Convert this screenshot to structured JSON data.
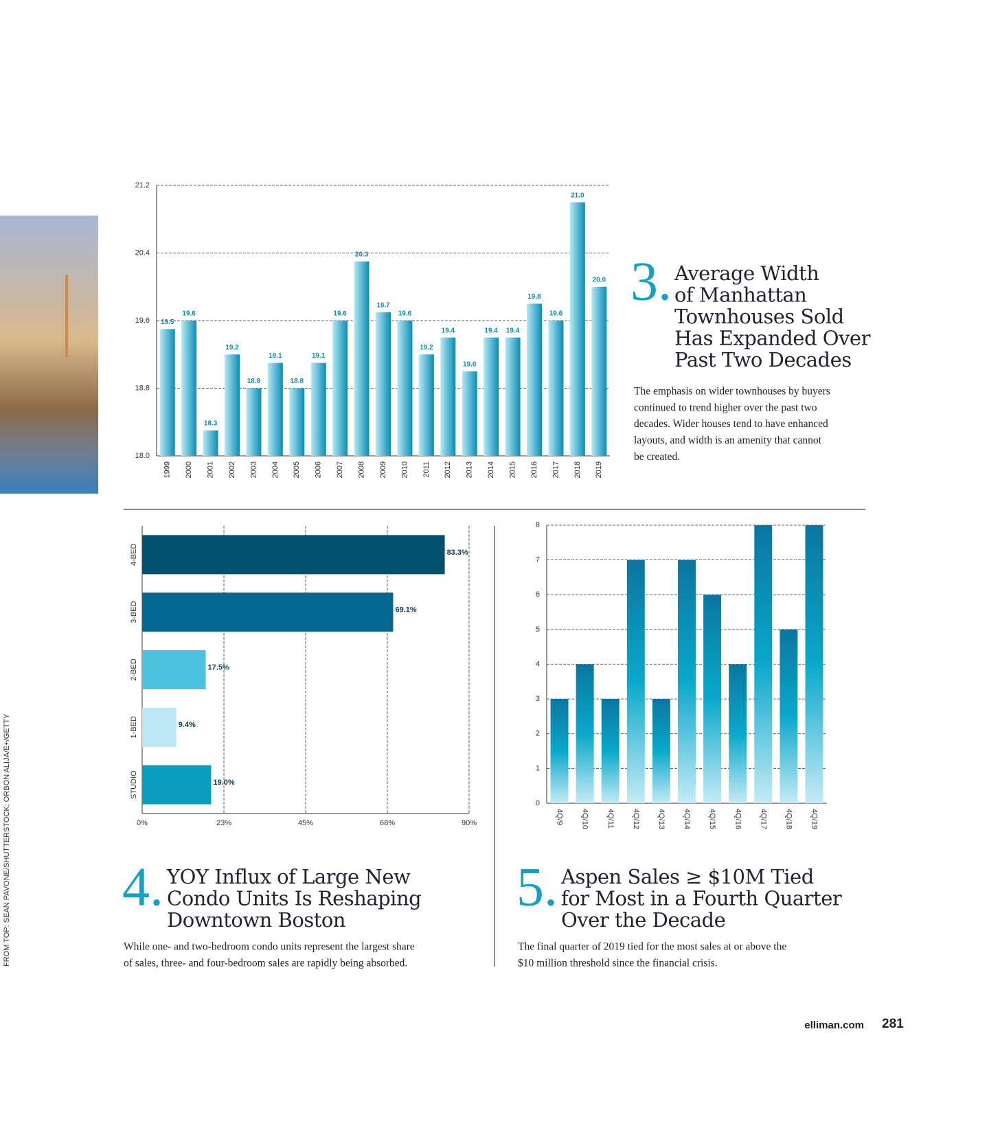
{
  "page": {
    "credit": "FROM TOP: SEAN PAVONE/SHUTTERSTOCK; ORBON ALIJA/E+/GETTY",
    "site": "elliman.com",
    "page_number": "281"
  },
  "chart_data": [
    {
      "type": "bar",
      "number": "3.",
      "title_lines": [
        "Average Width",
        "of Manhattan",
        "Townhouses Sold",
        "Has Expanded Over",
        "Past Two Decades"
      ],
      "description_lines": [
        "The emphasis on wider townhouses by buyers",
        "continued to trend higher over the past two",
        "decades. Wider houses tend to have enhanced",
        "layouts, and width is an amenity that cannot",
        "be created."
      ],
      "categories": [
        "1999",
        "2000",
        "2001",
        "2002",
        "2003",
        "2004",
        "2005",
        "2006",
        "2007",
        "2008",
        "2009",
        "2010",
        "2011",
        "2012",
        "2013",
        "2014",
        "2015",
        "2016",
        "2017",
        "2018",
        "2019"
      ],
      "values": [
        19.5,
        19.6,
        18.3,
        19.2,
        18.8,
        19.1,
        18.8,
        19.1,
        19.6,
        20.3,
        19.7,
        19.6,
        19.2,
        19.4,
        19.0,
        19.4,
        19.4,
        19.8,
        19.6,
        21.0,
        20.0
      ],
      "value_labels": [
        "19.5",
        "19.6",
        "18.3",
        "19.2",
        "18.8",
        "19.1",
        "18.8",
        "19.1",
        "19.6",
        "20.3",
        "19.7",
        "19.6",
        "19.2",
        "19.4",
        "19.0",
        "19.4",
        "19.4",
        "19.8",
        "19.6",
        "21.0",
        "20.0"
      ],
      "color": [
        "#b5e8f4",
        "#0a8db5"
      ],
      "ylim": [
        18.0,
        21.2
      ],
      "yticks": [
        {
          "value": 18.0,
          "label": "18.0"
        },
        18.8,
        19.6,
        20.4,
        21.2
      ],
      "grid": true
    },
    {
      "type": "hbar",
      "number": "4.",
      "title_lines": [
        "YOY Influx of Large New",
        "Condo Units Is Reshaping",
        "Downtown Boston"
      ],
      "description_lines": [
        "While one- and two-bedroom condo units represent the largest share",
        "of sales, three- and four-bedroom sales are rapidly being absorbed."
      ],
      "categories": [
        "4-BED",
        "3-BED",
        "2-BED",
        "1-BED",
        "STUDIO"
      ],
      "values": [
        83.3,
        69.1,
        17.5,
        9.4,
        19.0
      ],
      "value_labels": [
        "83.3%",
        "69.1%",
        "17.5%",
        "9.4%",
        "19.0%"
      ],
      "colors": [
        "#024f6e",
        "#046890",
        "#4cc3de",
        "#bde6f4",
        "#0a9dc0"
      ],
      "xlim": [
        0,
        90
      ],
      "xticks": [
        {
          "value": 0,
          "label": "0%"
        },
        {
          "value": 22.5,
          "label": "23%"
        },
        {
          "value": 45,
          "label": "45%"
        },
        {
          "value": 67.5,
          "label": "68%"
        },
        {
          "value": 90,
          "label": "90%"
        }
      ],
      "grid": true
    },
    {
      "type": "bar",
      "number": "5.",
      "title_lines": [
        "Aspen Sales ≥ $10M Tied",
        "for Most in a Fourth Quarter",
        "Over the Decade"
      ],
      "description_lines": [
        "The final quarter of 2019 tied for the most sales at or above the",
        "$10 million threshold since the financial crisis."
      ],
      "categories": [
        "4Q/9",
        "4Q/10",
        "4Q/11",
        "4Q/12",
        "4Q/13",
        "4Q/14",
        "4Q/15",
        "4Q/16",
        "4Q/17",
        "4Q/18",
        "4Q/19"
      ],
      "values": [
        3,
        4,
        3,
        7,
        3,
        7,
        6,
        4,
        8,
        5,
        8
      ],
      "color": [
        "#0b76a0",
        "#0aa8cb",
        "#c4ebf6"
      ],
      "ylim": [
        0,
        8
      ],
      "yticks": [
        0,
        1,
        2,
        3,
        4,
        5,
        6,
        7,
        8
      ],
      "grid": true
    }
  ]
}
